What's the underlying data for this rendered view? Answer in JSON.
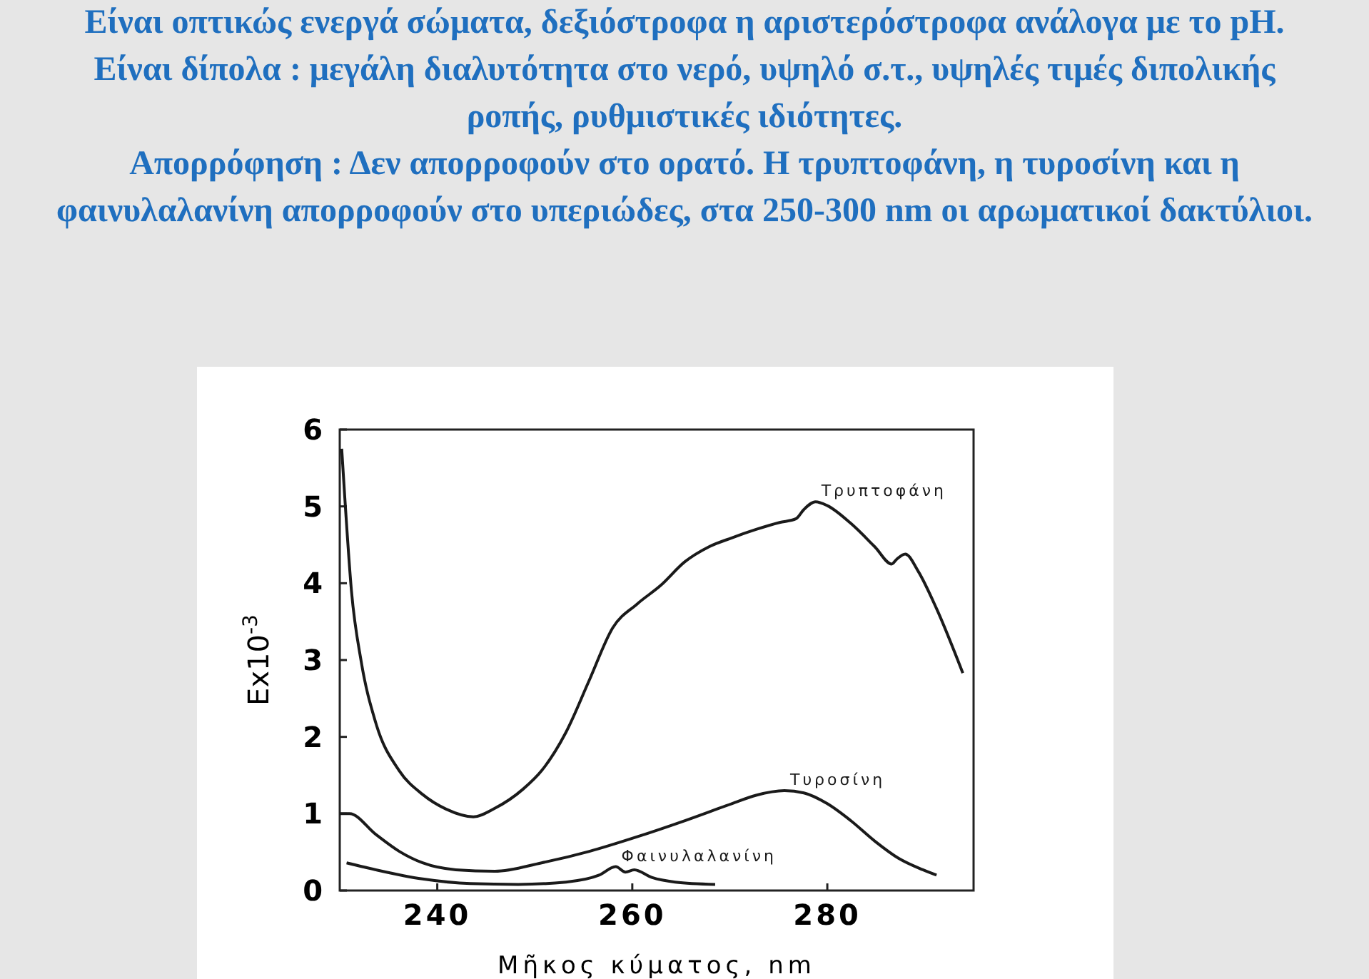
{
  "chart_data": {
    "type": "line",
    "title": "Είναι οπτικώς ενεργά σώματα, δεξιόστροφα η αριστερόστροφα ανάλογα με το pH.",
    "subtitle": "Είναι δίπολα : μεγάλη διαλυτότητα στο νερό, υψηλό σ.τ., υψηλές τιμές διπολικής ροπής, ρυθμιστικές ιδιότητες.",
    "annotations": [
      "Απορρόφηση : Δεν απορροφούν στο ορατό. Η τρυπτοφάνη, η τυροσίνη και η φαινυλαλανίνη απορροφούν στο υπεριώδες, στα 250-300 nm οι αρωματικοί δακτύλιοι."
    ],
    "xlabel": "Μῆκος κύματος, nm",
    "ylabel": "Ex10$^{-3}$",
    "xlim": [
      230,
      295
    ],
    "xticks": [
      240,
      260,
      280
    ],
    "ylim": [
      0,
      6
    ],
    "yticks": [
      0,
      1,
      2,
      3,
      4,
      5,
      6
    ],
    "grid": false,
    "marker": "none",
    "line_style": "solid",
    "series": [
      {
        "name": "Τρυπτοφάνη",
        "color": "#1a1a1a",
        "x": [
          230.2,
          230.5,
          231.2,
          232.2,
          233.7,
          236.1,
          238.5,
          240.9,
          243.7,
          245.9,
          248.8,
          250.7,
          253.2,
          255.6,
          258.0,
          260.5,
          262.9,
          265.4,
          267.8,
          270.2,
          272.7,
          275.1,
          276.8,
          277.6,
          278.8,
          280,
          282.4,
          284.9,
          286.6,
          287.1,
          288.0,
          289.3,
          291.2,
          293.9
        ],
        "values": [
          5.75,
          5.15,
          3.9,
          2.98,
          2.18,
          1.56,
          1.25,
          1.06,
          0.96,
          1.07,
          1.32,
          1.56,
          2.06,
          2.74,
          3.42,
          3.73,
          3.97,
          4.28,
          4.47,
          4.59,
          4.7,
          4.79,
          4.84,
          4.96,
          5.06,
          5.01,
          4.78,
          4.47,
          4.25,
          4.31,
          4.38,
          4.16,
          3.67,
          2.83
        ]
      },
      {
        "name": "Τυροσίνη",
        "color": "#1a1a1a",
        "x": [
          230,
          231,
          233.7,
          236.1,
          238.5,
          241.9,
          245.9,
          250.7,
          255.6,
          260.5,
          265.4,
          270.2,
          272.7,
          275.6,
          277.6,
          280,
          282.4,
          284.9,
          287.3,
          289.8,
          291.2
        ],
        "values": [
          1.0,
          1.0,
          0.73,
          0.51,
          0.36,
          0.27,
          0.25,
          0.36,
          0.51,
          0.7,
          0.91,
          1.13,
          1.24,
          1.3,
          1.27,
          1.13,
          0.91,
          0.64,
          0.42,
          0.27,
          0.2
        ]
      },
      {
        "name": "Φαινυλαλανίνη",
        "color": "#1a1a1a",
        "x": [
          230.7,
          233.7,
          238.5,
          243.4,
          248.3,
          253.2,
          256.6,
          258.3,
          259.3,
          260.2,
          262,
          264.4,
          268.5
        ],
        "values": [
          0.36,
          0.27,
          0.15,
          0.09,
          0.08,
          0.11,
          0.2,
          0.31,
          0.24,
          0.27,
          0.17,
          0.11,
          0.08
        ]
      }
    ]
  }
}
